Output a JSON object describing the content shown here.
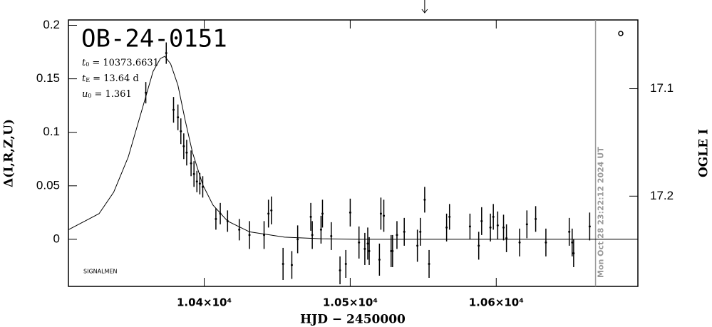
{
  "chart_data": {
    "type": "scatter",
    "title": "OB-24-0151",
    "params": [
      {
        "symbol": "t",
        "sub": "0",
        "text": "= 10373.6631"
      },
      {
        "symbol": "t",
        "sub": "E",
        "text": "= 13.64 d"
      },
      {
        "symbol": "u",
        "sub": "0",
        "text": "= 1.361"
      }
    ],
    "annotation": "SIGNALMEN",
    "timestamp": "Mon Oct 28 23:22:12 2024 UT",
    "timestamp_x": 10668,
    "marker_x": 10551,
    "xlabel": "HJD − 2450000",
    "ylabel": "Δ(I,R,Z,U)",
    "y2label": "OGLE I",
    "xlim": [
      10307,
      10697
    ],
    "ylim": [
      -0.044,
      0.205
    ],
    "y2lim": [
      17.284,
      17.036
    ],
    "xticks": [
      {
        "value": 10400,
        "label": "1.04×10⁴"
      },
      {
        "value": 10500,
        "label": "1.05×10⁴"
      },
      {
        "value": 10600,
        "label": "1.06×10⁴"
      }
    ],
    "yticks": [
      0,
      0.05,
      0.1,
      0.15,
      0.2
    ],
    "y2ticks": [
      17.1,
      17.2
    ],
    "series": [
      {
        "type": "errorbar",
        "color": "#000000",
        "x": [
          10360,
          10374,
          10379,
          10382,
          10384,
          10386,
          10388,
          10391,
          10393,
          10395,
          10397,
          10399,
          10408,
          10411,
          10416,
          10424,
          10431,
          10441,
          10444,
          10446,
          10454,
          10460,
          10464,
          10473,
          10474,
          10480,
          10481,
          10487,
          10493,
          10497,
          10500,
          10506,
          10510,
          10512,
          10513,
          10520,
          10521,
          10523,
          10528,
          10529,
          10532,
          10537,
          10546,
          10548,
          10551,
          10554,
          10566,
          10568,
          10582,
          10588,
          10590,
          10596,
          10598,
          10601,
          10605,
          10607,
          10616,
          10621,
          10627,
          10634,
          10650,
          10652,
          10653,
          10664
        ],
        "values": [
          0.137,
          0.174,
          0.121,
          0.114,
          0.101,
          0.087,
          0.081,
          0.071,
          0.061,
          0.054,
          0.052,
          0.049,
          0.019,
          0.024,
          0.017,
          0.009,
          0.004,
          0.004,
          0.024,
          0.027,
          -0.023,
          -0.024,
          0.0,
          0.021,
          0.004,
          0.009,
          0.024,
          0.003,
          -0.029,
          -0.023,
          0.025,
          -0.003,
          -0.009,
          -0.004,
          -0.011,
          -0.019,
          0.024,
          0.022,
          -0.011,
          -0.011,
          0.004,
          0.007,
          -0.006,
          0.007,
          0.037,
          -0.023,
          0.011,
          0.021,
          0.012,
          -0.006,
          0.017,
          0.011,
          0.021,
          0.013,
          0.011,
          0.001,
          -0.003,
          0.014,
          0.019,
          -0.003,
          0.007,
          -0.003,
          -0.013,
          0.012
        ],
        "errors": [
          0.01,
          0.01,
          0.012,
          0.012,
          0.012,
          0.012,
          0.012,
          0.012,
          0.012,
          0.01,
          0.01,
          0.01,
          0.01,
          0.01,
          0.01,
          0.01,
          0.013,
          0.013,
          0.013,
          0.013,
          0.015,
          0.013,
          0.013,
          0.013,
          0.013,
          0.013,
          0.013,
          0.013,
          0.013,
          0.013,
          0.013,
          0.015,
          0.015,
          0.015,
          0.013,
          0.015,
          0.015,
          0.015,
          0.015,
          0.015,
          0.013,
          0.013,
          0.015,
          0.013,
          0.012,
          0.013,
          0.013,
          0.012,
          0.012,
          0.013,
          0.013,
          0.013,
          0.012,
          0.013,
          0.012,
          0.013,
          0.013,
          0.013,
          0.012,
          0.013,
          0.013,
          0.013,
          0.013,
          0.013
        ]
      },
      {
        "type": "line",
        "color": "#000000",
        "x": [
          10307,
          10328,
          10338,
          10348,
          10358,
          10365,
          10370,
          10373,
          10377,
          10382,
          10387,
          10392,
          10399,
          10406,
          10416,
          10431,
          10455,
          10480,
          10504,
          10697
        ],
        "values": [
          0.009,
          0.024,
          0.044,
          0.077,
          0.124,
          0.157,
          0.169,
          0.171,
          0.164,
          0.144,
          0.111,
          0.081,
          0.051,
          0.032,
          0.017,
          0.007,
          0.002,
          0.0005,
          0,
          0
        ]
      }
    ]
  }
}
